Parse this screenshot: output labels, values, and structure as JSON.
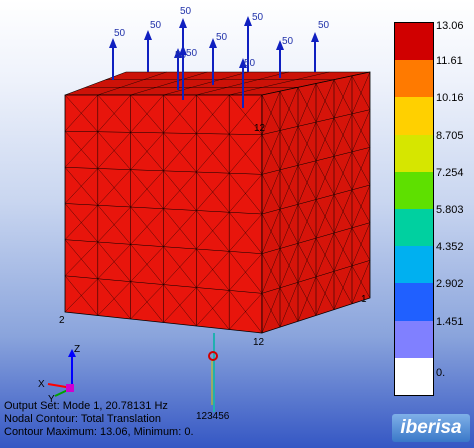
{
  "legend": {
    "levels": [
      "13.06",
      "11.61",
      "10.16",
      "8.705",
      "7.254",
      "5.803",
      "4.352",
      "2.902",
      "1.451",
      "0."
    ],
    "colors": [
      "#d00000",
      "#ff7a00",
      "#ffd000",
      "#d6e600",
      "#5ee000",
      "#00d0a0",
      "#00b0f0",
      "#2060ff",
      "#8080ff",
      "#ffffff"
    ]
  },
  "node_labels": {
    "top": "12",
    "right": "1",
    "left": "2",
    "bottom": "12",
    "constraint": "123456"
  },
  "load_labels": [
    "50",
    "50",
    "50",
    "50",
    "50",
    "50",
    "50",
    "50",
    "50",
    "50"
  ],
  "triad": {
    "z": "Z",
    "x": "X",
    "y": "Y"
  },
  "info": {
    "line1": "Output Set: Mode 1, 20.78131 Hz",
    "line2": "Nodal Contour: Total Translation",
    "line3": "Contour Maximum: 13.06, Minimum: 0."
  },
  "brand": "iberisa",
  "colors": {
    "mesh": "#e8150c",
    "mesh_dark": "#c20f08",
    "mesh_top": "#cc1208",
    "arrow": "#1020c0"
  }
}
